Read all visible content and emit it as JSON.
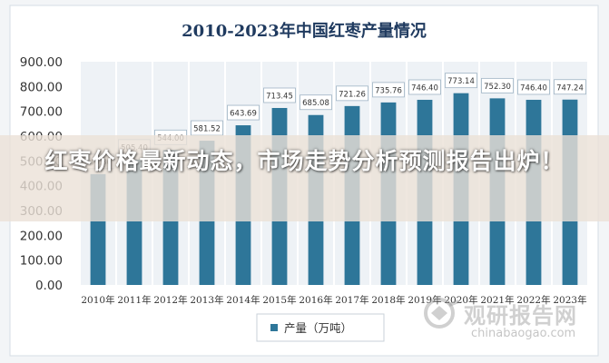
{
  "chart_data": {
    "type": "bar",
    "title": "2010-2023年中国红枣产量情况",
    "categories": [
      "2010年",
      "2011年",
      "2012年",
      "2013年",
      "2014年",
      "2015年",
      "2016年",
      "2017年",
      "2018年",
      "2019年",
      "2020年",
      "2021年",
      "2022年",
      "2023年"
    ],
    "series": [
      {
        "name": "产量（万吨）",
        "values": [
          446.8,
          505.4,
          544.0,
          581.52,
          643.69,
          713.45,
          685.08,
          721.26,
          735.76,
          746.4,
          773.14,
          752.3,
          746.4,
          747.24
        ]
      }
    ],
    "data_labels": [
      "446.80",
      "505.40",
      "544.00",
      "581.52",
      "643.69",
      "713.45",
      "685.08",
      "721.26",
      "735.76",
      "746.40",
      "773.14",
      "752.30",
      "746.40",
      "747.24"
    ],
    "y_ticks": [
      "0.00",
      "100.00",
      "200.00",
      "300.00",
      "400.00",
      "500.00",
      "600.00",
      "700.00",
      "800.00",
      "900.00"
    ],
    "ylim": [
      0,
      900
    ],
    "grid": "vertical",
    "legend_position": "bottom-center",
    "colors": {
      "bar": "#2e7699",
      "background": "#ffffff",
      "plot_bg": "#eef2f6",
      "title": "#1f3a5f"
    }
  },
  "overlay": {
    "headline": "红枣价格最新动态，市场走势分析预测报告出炉！"
  },
  "watermark": {
    "title": "观研报告网",
    "url": "chinabaogao.com"
  }
}
